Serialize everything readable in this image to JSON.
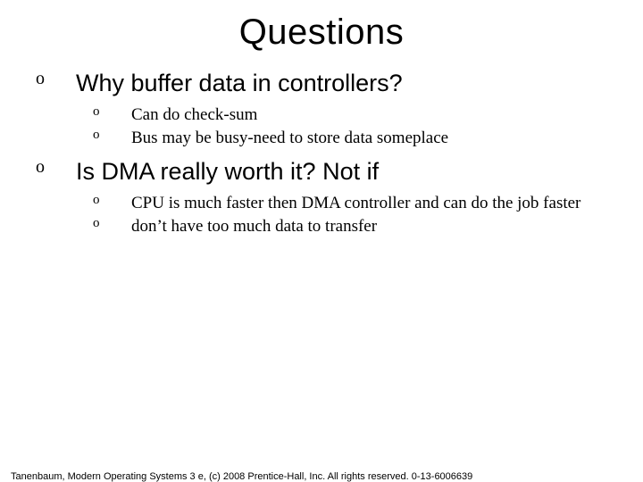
{
  "title": "Questions",
  "bullet_glyph": "o",
  "items": [
    {
      "text": "Why buffer data in controllers?",
      "sub": [
        "Can do check-sum",
        "Bus may be busy-need to store data someplace"
      ]
    },
    {
      "text": "Is DMA really worth it? Not if",
      "sub": [
        "CPU is much faster then DMA controller and can do the job faster",
        "don’t have too much data to transfer"
      ]
    }
  ],
  "footer": "Tanenbaum, Modern Operating Systems 3 e, (c) 2008 Prentice-Hall, Inc. All rights reserved. 0-13-6006639",
  "colors": {
    "background": "#ffffff",
    "text": "#000000"
  },
  "fonts": {
    "title_size": 40,
    "l1_size": 27,
    "l2_size": 19,
    "footer_size": 11
  }
}
